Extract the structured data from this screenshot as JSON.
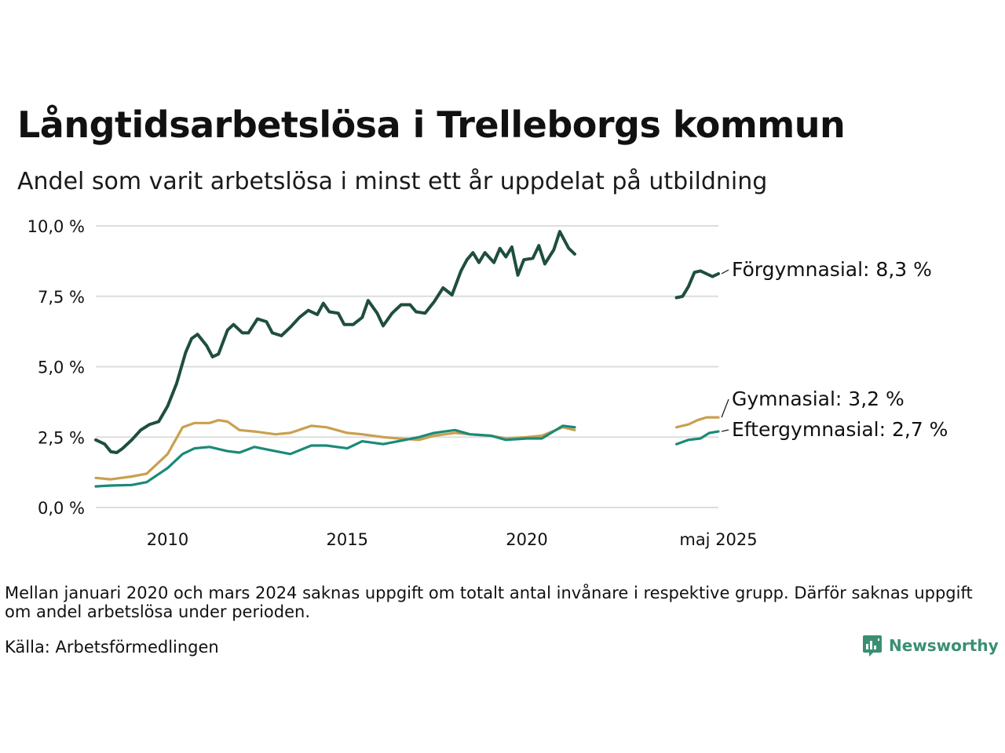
{
  "header": {
    "title": "Långtidsarbetslösa i Trelleborgs kommun",
    "subtitle": "Andel som varit arbetslösa i minst ett år uppdelat på utbildning"
  },
  "footer": {
    "note": "Mellan januari 2020 och mars 2024 saknas uppgift om totalt antal invånare i respektive grupp. Därför saknas uppgift om andel arbetslösa under perioden.",
    "source": "Källa: Arbetsförmedlingen",
    "brand": "Newsworthy"
  },
  "colors": {
    "forgymnasial": "#1f4e3d",
    "gymnasial": "#c9a04f",
    "eftergymnasial": "#1a8a78",
    "grid": "#dddddd",
    "brand": "#3a8f73"
  },
  "chart_data": {
    "type": "line",
    "x_axis_type": "date",
    "ylim": [
      0,
      10
    ],
    "y_ticks": [
      {
        "value": 0,
        "label": "0,0 %"
      },
      {
        "value": 2.5,
        "label": "2,5 %"
      },
      {
        "value": 5,
        "label": "5,0 %"
      },
      {
        "value": 7.5,
        "label": "7,5 %"
      },
      {
        "value": 10,
        "label": "10,0 %"
      }
    ],
    "x_ticks": [
      {
        "date": "2010-01",
        "label": "2010"
      },
      {
        "date": "2015-01",
        "label": "2015"
      },
      {
        "date": "2020-01",
        "label": "2020"
      },
      {
        "date": "2025-05",
        "label": "maj 2025"
      }
    ],
    "xlim": [
      "2008-01",
      "2025-05"
    ],
    "grid": true,
    "series": [
      {
        "name": "Förgymnasial",
        "end_label": "Förgymnasial: 8,3 %",
        "color_key": "forgymnasial",
        "segments": [
          [
            [
              "2008-01",
              2.4
            ],
            [
              "2008-04",
              2.25
            ],
            [
              "2008-06",
              1.98
            ],
            [
              "2008-08",
              1.95
            ],
            [
              "2008-10",
              2.1
            ],
            [
              "2009-01",
              2.4
            ],
            [
              "2009-04",
              2.75
            ],
            [
              "2009-07",
              2.95
            ],
            [
              "2009-10",
              3.05
            ],
            [
              "2010-01",
              3.6
            ],
            [
              "2010-04",
              4.4
            ],
            [
              "2010-07",
              5.5
            ],
            [
              "2010-09",
              6.0
            ],
            [
              "2010-11",
              6.15
            ],
            [
              "2011-02",
              5.75
            ],
            [
              "2011-04",
              5.35
            ],
            [
              "2011-06",
              5.45
            ],
            [
              "2011-09",
              6.3
            ],
            [
              "2011-11",
              6.5
            ],
            [
              "2012-02",
              6.2
            ],
            [
              "2012-04",
              6.2
            ],
            [
              "2012-07",
              6.7
            ],
            [
              "2012-10",
              6.6
            ],
            [
              "2012-12",
              6.2
            ],
            [
              "2013-03",
              6.1
            ],
            [
              "2013-06",
              6.4
            ],
            [
              "2013-09",
              6.75
            ],
            [
              "2013-12",
              7.0
            ],
            [
              "2014-03",
              6.85
            ],
            [
              "2014-05",
              7.25
            ],
            [
              "2014-07",
              6.95
            ],
            [
              "2014-10",
              6.9
            ],
            [
              "2014-12",
              6.5
            ],
            [
              "2015-03",
              6.5
            ],
            [
              "2015-06",
              6.75
            ],
            [
              "2015-08",
              7.35
            ],
            [
              "2015-11",
              6.9
            ],
            [
              "2016-01",
              6.45
            ],
            [
              "2016-04",
              6.9
            ],
            [
              "2016-07",
              7.2
            ],
            [
              "2016-10",
              7.2
            ],
            [
              "2016-12",
              6.95
            ],
            [
              "2017-03",
              6.9
            ],
            [
              "2017-06",
              7.3
            ],
            [
              "2017-09",
              7.8
            ],
            [
              "2017-12",
              7.55
            ],
            [
              "2018-03",
              8.4
            ],
            [
              "2018-05",
              8.8
            ],
            [
              "2018-07",
              9.05
            ],
            [
              "2018-09",
              8.7
            ],
            [
              "2018-11",
              9.05
            ],
            [
              "2019-02",
              8.7
            ],
            [
              "2019-04",
              9.2
            ],
            [
              "2019-06",
              8.9
            ],
            [
              "2019-08",
              9.25
            ],
            [
              "2019-10",
              8.25
            ],
            [
              "2019-12",
              8.8
            ],
            [
              "2020-03",
              8.85
            ],
            [
              "2020-05",
              9.3
            ],
            [
              "2020-07",
              8.65
            ],
            [
              "2020-10",
              9.15
            ],
            [
              "2020-12",
              9.8
            ],
            [
              "2021-03",
              9.2
            ],
            [
              "2021-05",
              9.0
            ]
          ],
          [
            [
              "2024-03",
              7.45
            ],
            [
              "2024-05",
              7.5
            ],
            [
              "2024-07",
              7.85
            ],
            [
              "2024-09",
              8.35
            ],
            [
              "2024-11",
              8.4
            ],
            [
              "2025-01",
              8.3
            ],
            [
              "2025-03",
              8.2
            ],
            [
              "2025-05",
              8.3
            ]
          ]
        ]
      },
      {
        "name": "Gymnasial",
        "end_label": "Gymnasial: 3,2 %",
        "color_key": "gymnasial",
        "segments": [
          [
            [
              "2008-01",
              1.05
            ],
            [
              "2008-06",
              1.0
            ],
            [
              "2009-01",
              1.1
            ],
            [
              "2009-06",
              1.2
            ],
            [
              "2010-01",
              1.9
            ],
            [
              "2010-06",
              2.85
            ],
            [
              "2010-10",
              3.0
            ],
            [
              "2011-03",
              3.0
            ],
            [
              "2011-06",
              3.1
            ],
            [
              "2011-09",
              3.05
            ],
            [
              "2012-01",
              2.75
            ],
            [
              "2012-06",
              2.7
            ],
            [
              "2013-01",
              2.6
            ],
            [
              "2013-06",
              2.65
            ],
            [
              "2014-01",
              2.9
            ],
            [
              "2014-06",
              2.85
            ],
            [
              "2015-01",
              2.65
            ],
            [
              "2015-06",
              2.6
            ],
            [
              "2016-01",
              2.5
            ],
            [
              "2016-06",
              2.45
            ],
            [
              "2017-01",
              2.4
            ],
            [
              "2017-06",
              2.55
            ],
            [
              "2018-01",
              2.65
            ],
            [
              "2018-06",
              2.6
            ],
            [
              "2019-01",
              2.55
            ],
            [
              "2019-06",
              2.45
            ],
            [
              "2020-01",
              2.5
            ],
            [
              "2020-06",
              2.55
            ],
            [
              "2021-01",
              2.85
            ],
            [
              "2021-05",
              2.75
            ]
          ],
          [
            [
              "2024-03",
              2.85
            ],
            [
              "2024-07",
              2.95
            ],
            [
              "2024-10",
              3.1
            ],
            [
              "2025-01",
              3.2
            ],
            [
              "2025-05",
              3.2
            ]
          ]
        ]
      },
      {
        "name": "Eftergymnasial",
        "end_label": "Eftergymnasial: 2,7 %",
        "color_key": "eftergymnasial",
        "segments": [
          [
            [
              "2008-01",
              0.75
            ],
            [
              "2008-06",
              0.78
            ],
            [
              "2009-01",
              0.8
            ],
            [
              "2009-06",
              0.9
            ],
            [
              "2010-01",
              1.4
            ],
            [
              "2010-06",
              1.9
            ],
            [
              "2010-10",
              2.1
            ],
            [
              "2011-03",
              2.15
            ],
            [
              "2011-09",
              2.0
            ],
            [
              "2012-01",
              1.95
            ],
            [
              "2012-06",
              2.15
            ],
            [
              "2013-01",
              2.0
            ],
            [
              "2013-06",
              1.9
            ],
            [
              "2014-01",
              2.2
            ],
            [
              "2014-06",
              2.2
            ],
            [
              "2015-01",
              2.1
            ],
            [
              "2015-06",
              2.35
            ],
            [
              "2016-01",
              2.25
            ],
            [
              "2016-06",
              2.35
            ],
            [
              "2017-01",
              2.5
            ],
            [
              "2017-06",
              2.65
            ],
            [
              "2018-01",
              2.75
            ],
            [
              "2018-06",
              2.6
            ],
            [
              "2019-01",
              2.55
            ],
            [
              "2019-06",
              2.4
            ],
            [
              "2020-01",
              2.45
            ],
            [
              "2020-06",
              2.45
            ],
            [
              "2021-01",
              2.9
            ],
            [
              "2021-05",
              2.85
            ]
          ],
          [
            [
              "2024-03",
              2.25
            ],
            [
              "2024-07",
              2.4
            ],
            [
              "2024-11",
              2.45
            ],
            [
              "2025-02",
              2.65
            ],
            [
              "2025-05",
              2.7
            ]
          ]
        ]
      }
    ]
  }
}
